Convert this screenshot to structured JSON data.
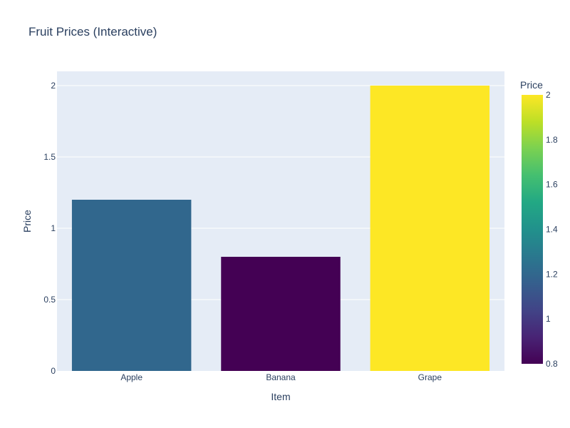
{
  "chart_data": {
    "type": "bar",
    "title": "Fruit Prices (Interactive)",
    "xlabel": "Item",
    "ylabel": "Price",
    "categories": [
      "Apple",
      "Banana",
      "Grape"
    ],
    "values": [
      1.2,
      0.8,
      2
    ],
    "ylim": [
      0,
      2.1
    ],
    "y_ticks": [
      0,
      0.5,
      1,
      1.5,
      2
    ],
    "y_tick_labels": [
      "0",
      "0.5",
      "1",
      "1.5",
      "2"
    ],
    "grid": true,
    "legend": "none",
    "colorbar": {
      "title": "Price",
      "range": [
        0.8,
        2
      ],
      "ticks": [
        0.8,
        1,
        1.2,
        1.4,
        1.6,
        1.8,
        2
      ],
      "tick_labels": [
        "0.8",
        "1",
        "1.2",
        "1.4",
        "1.6",
        "1.8",
        "2"
      ],
      "colorscale": "viridis",
      "placement": "right"
    }
  },
  "colors": {
    "plot_background": "#e5ecf6",
    "gridline": "#ffffff",
    "text": "#2a3f5f"
  }
}
